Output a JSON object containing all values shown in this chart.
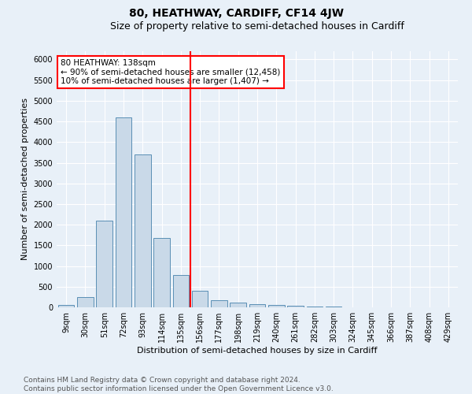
{
  "title": "80, HEATHWAY, CARDIFF, CF14 4JW",
  "subtitle": "Size of property relative to semi-detached houses in Cardiff",
  "xlabel": "Distribution of semi-detached houses by size in Cardiff",
  "ylabel": "Number of semi-detached properties",
  "categories": [
    "9sqm",
    "30sqm",
    "51sqm",
    "72sqm",
    "93sqm",
    "114sqm",
    "135sqm",
    "156sqm",
    "177sqm",
    "198sqm",
    "219sqm",
    "240sqm",
    "261sqm",
    "282sqm",
    "303sqm",
    "324sqm",
    "345sqm",
    "366sqm",
    "387sqm",
    "408sqm",
    "429sqm"
  ],
  "values": [
    50,
    240,
    2100,
    4600,
    3700,
    1670,
    780,
    400,
    175,
    110,
    80,
    65,
    30,
    20,
    10,
    5,
    3,
    2,
    2,
    2,
    5
  ],
  "bar_color": "#c9d9e8",
  "bar_edge_color": "#5a8fb5",
  "vline_x": 6.5,
  "vline_color": "red",
  "annotation_text": "80 HEATHWAY: 138sqm\n← 90% of semi-detached houses are smaller (12,458)\n10% of semi-detached houses are larger (1,407) →",
  "annotation_box_color": "white",
  "annotation_box_edge_color": "red",
  "ylim": [
    0,
    6200
  ],
  "yticks": [
    0,
    500,
    1000,
    1500,
    2000,
    2500,
    3000,
    3500,
    4000,
    4500,
    5000,
    5500,
    6000
  ],
  "footer_text": "Contains HM Land Registry data © Crown copyright and database right 2024.\nContains public sector information licensed under the Open Government Licence v3.0.",
  "bg_color": "#e8f0f8",
  "plot_bg_color": "#e8f0f8",
  "grid_color": "white",
  "title_fontsize": 10,
  "subtitle_fontsize": 9,
  "label_fontsize": 8,
  "tick_fontsize": 7,
  "footer_fontsize": 6.5,
  "ann_fontsize": 7.5
}
